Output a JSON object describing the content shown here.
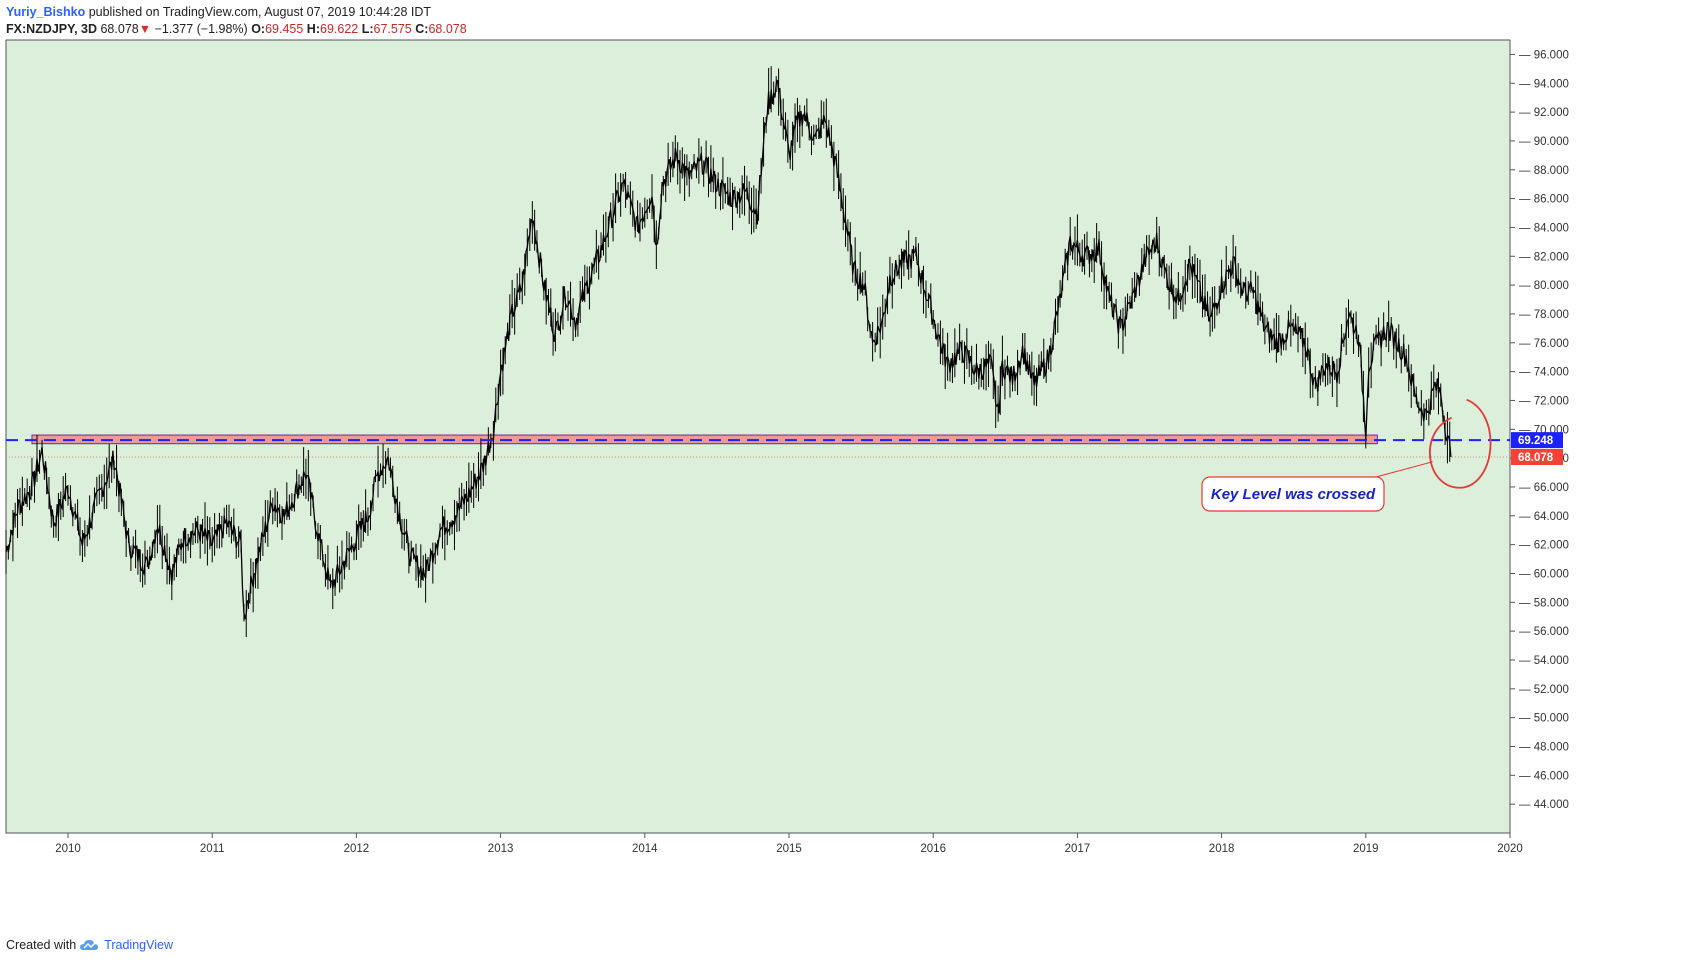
{
  "header": {
    "author": "Yuriy_Bishko",
    "published_text": "published on TradingView.com, August 07, 2019 10:44:28 IDT",
    "symbol": "FX:NZDJPY, 3D",
    "last": "68.078",
    "change_arrow": "▼",
    "change": "−1.377 (−1.98%)",
    "o_label": "O:",
    "o_value": "69.455",
    "h_label": "H:",
    "h_value": "69.622",
    "l_label": "L:",
    "l_value": "67.575",
    "c_label": "C:",
    "c_value": "68.078"
  },
  "footer": {
    "created_with": "Created with",
    "brand": "TradingView",
    "logo_icon": "tradingview-cloud-icon"
  },
  "annotation": {
    "text": "Key Level was crossed"
  },
  "colors": {
    "plot_bg": "#dcefdb",
    "candle": "#000000",
    "key_level_line": "#1a22ff",
    "key_zone_fill": "#ef9a9a",
    "key_zone_border": "#7b1fa2",
    "current_tag": "#f44336",
    "key_tag": "#1a22ff",
    "circle": "#e53935"
  },
  "chart_data": {
    "type": "line",
    "title": "FX:NZDJPY, 3D",
    "xlabel": "",
    "ylabel": "",
    "x_ticks": [
      "2010",
      "2011",
      "2012",
      "2013",
      "2014",
      "2015",
      "2016",
      "2017",
      "2018",
      "2019",
      "2020"
    ],
    "y_ticks": [
      "44.000",
      "46.000",
      "48.000",
      "50.000",
      "52.000",
      "54.000",
      "56.000",
      "58.000",
      "60.000",
      "62.000",
      "64.000",
      "66.000",
      "68.000",
      "70.000",
      "72.000",
      "74.000",
      "76.000",
      "78.000",
      "80.000",
      "82.000",
      "84.000",
      "86.000",
      "88.000",
      "90.000",
      "92.000",
      "94.000",
      "96.000"
    ],
    "xlim": [
      2009.57,
      2020.0
    ],
    "ylim": [
      42.0,
      97.0
    ],
    "key_level": 69.248,
    "key_level_label": "69.248",
    "current_price": 68.078,
    "current_price_label": "68.078",
    "key_zone": {
      "x_start": 2009.75,
      "x_end": 2019.08,
      "low": 69.0,
      "high": 69.6
    },
    "series": [
      {
        "name": "NZDJPY",
        "x": [
          2009.57,
          2009.65,
          2009.75,
          2009.82,
          2009.9,
          2010.0,
          2010.1,
          2010.2,
          2010.32,
          2010.42,
          2010.55,
          2010.62,
          2010.72,
          2010.8,
          2010.9,
          2011.0,
          2011.1,
          2011.2,
          2011.22,
          2011.3,
          2011.42,
          2011.5,
          2011.57,
          2011.65,
          2011.75,
          2011.82,
          2011.9,
          2012.0,
          2012.08,
          2012.15,
          2012.22,
          2012.3,
          2012.38,
          2012.48,
          2012.58,
          2012.68,
          2012.78,
          2012.88,
          2012.95,
          2013.0,
          2013.08,
          2013.15,
          2013.22,
          2013.3,
          2013.38,
          2013.45,
          2013.52,
          2013.6,
          2013.68,
          2013.78,
          2013.85,
          2013.95,
          2014.05,
          2014.08,
          2014.12,
          2014.22,
          2014.3,
          2014.4,
          2014.5,
          2014.6,
          2014.7,
          2014.78,
          2014.85,
          2014.92,
          2015.0,
          2015.05,
          2015.1,
          2015.18,
          2015.25,
          2015.32,
          2015.4,
          2015.45,
          2015.52,
          2015.58,
          2015.65,
          2015.7,
          2015.78,
          2015.88,
          2015.95,
          2016.05,
          2016.1,
          2016.2,
          2016.3,
          2016.4,
          2016.45,
          2016.48,
          2016.55,
          2016.62,
          2016.7,
          2016.8,
          2016.88,
          2016.95,
          2017.05,
          2017.15,
          2017.22,
          2017.3,
          2017.38,
          2017.48,
          2017.55,
          2017.62,
          2017.7,
          2017.78,
          2017.85,
          2017.92,
          2018.0,
          2018.08,
          2018.15,
          2018.22,
          2018.3,
          2018.38,
          2018.48,
          2018.58,
          2018.65,
          2018.72,
          2018.8,
          2018.88,
          2018.95,
          2019.0,
          2019.02,
          2019.08,
          2019.15,
          2019.22,
          2019.28,
          2019.35,
          2019.42,
          2019.48,
          2019.52,
          2019.55,
          2019.59
        ],
        "values": [
          61.5,
          64.5,
          66.0,
          68.5,
          63.5,
          66.0,
          62.0,
          65.0,
          68.0,
          62.0,
          60.5,
          63.5,
          60.0,
          62.5,
          63.0,
          62.0,
          63.5,
          62.0,
          57.0,
          60.5,
          65.0,
          64.0,
          65.5,
          67.0,
          62.0,
          59.0,
          60.5,
          62.5,
          64.0,
          67.0,
          68.0,
          64.0,
          61.0,
          60.0,
          63.0,
          64.0,
          65.5,
          67.5,
          70.0,
          74.0,
          78.0,
          80.0,
          85.0,
          80.0,
          76.5,
          79.5,
          77.5,
          80.0,
          82.0,
          85.0,
          87.0,
          84.0,
          86.5,
          82.5,
          87.0,
          89.0,
          87.5,
          88.5,
          87.0,
          86.0,
          86.5,
          85.0,
          92.5,
          94.0,
          89.0,
          91.0,
          92.0,
          90.0,
          91.5,
          88.5,
          84.0,
          81.0,
          80.0,
          76.0,
          77.5,
          80.5,
          81.5,
          82.0,
          79.5,
          76.0,
          74.5,
          75.5,
          74.0,
          74.5,
          71.0,
          74.5,
          73.5,
          75.5,
          73.0,
          75.0,
          79.0,
          83.0,
          82.0,
          82.5,
          79.0,
          77.0,
          79.0,
          82.0,
          83.0,
          80.5,
          79.0,
          81.5,
          79.5,
          77.5,
          80.0,
          81.5,
          79.5,
          79.5,
          77.0,
          76.0,
          77.0,
          76.0,
          73.0,
          74.5,
          74.0,
          78.0,
          76.5,
          70.0,
          74.5,
          76.0,
          77.0,
          76.0,
          75.0,
          72.0,
          71.0,
          73.0,
          72.5,
          70.5,
          68.078
        ]
      }
    ]
  }
}
